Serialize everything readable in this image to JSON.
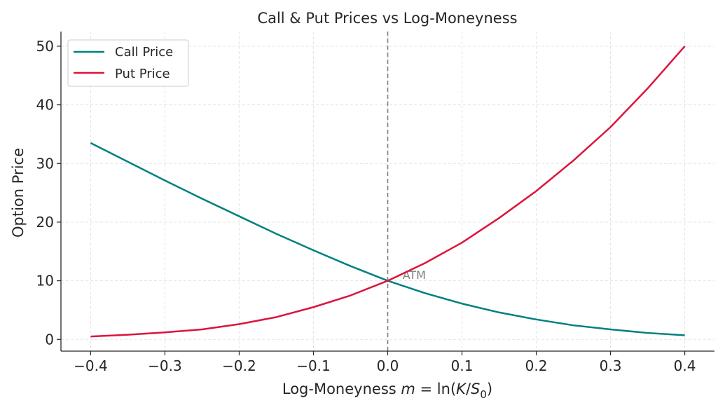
{
  "chart_data": {
    "type": "line",
    "title": "Call & Put Prices vs Log-Moneyness",
    "xlabel": "Log-Moneyness",
    "xlabel_math": {
      "var": "m",
      "eq": " = ln(",
      "k": "K",
      "slash": "/",
      "s": "S",
      "sub": "0",
      "close": ")"
    },
    "ylabel": "Option Price",
    "xlim": [
      -0.44,
      0.44
    ],
    "ylim": [
      -2,
      52.5
    ],
    "xticks": [
      -0.4,
      -0.3,
      -0.2,
      -0.1,
      0.0,
      0.1,
      0.2,
      0.3,
      0.4
    ],
    "xtick_labels": [
      "−0.4",
      "−0.3",
      "−0.2",
      "−0.1",
      "0.0",
      "0.1",
      "0.2",
      "0.3",
      "0.4"
    ],
    "yticks": [
      0,
      10,
      20,
      30,
      40,
      50
    ],
    "ytick_labels": [
      "0",
      "10",
      "20",
      "30",
      "40",
      "50"
    ],
    "grid": true,
    "legend_position": "top-left",
    "x": [
      -0.4,
      -0.35,
      -0.3,
      -0.25,
      -0.2,
      -0.15,
      -0.1,
      -0.05,
      0.0,
      0.05,
      0.1,
      0.15,
      0.2,
      0.25,
      0.3,
      0.35,
      0.4
    ],
    "series": [
      {
        "name": "Call Price",
        "color": "#008080",
        "values": [
          33.5,
          30.3,
          27.1,
          24.0,
          21.0,
          18.0,
          15.2,
          12.5,
          10.0,
          7.9,
          6.1,
          4.6,
          3.4,
          2.4,
          1.7,
          1.1,
          0.7
        ]
      },
      {
        "name": "Put Price",
        "color": "#DC143C",
        "values": [
          0.5,
          0.8,
          1.2,
          1.7,
          2.6,
          3.8,
          5.5,
          7.5,
          10.0,
          13.0,
          16.5,
          20.7,
          25.3,
          30.5,
          36.2,
          42.8,
          50.0
        ]
      }
    ],
    "atm_line": {
      "x": 0.0,
      "color": "#808080",
      "label": "ATM",
      "label_x": 0.02,
      "label_y": 11.0
    }
  }
}
